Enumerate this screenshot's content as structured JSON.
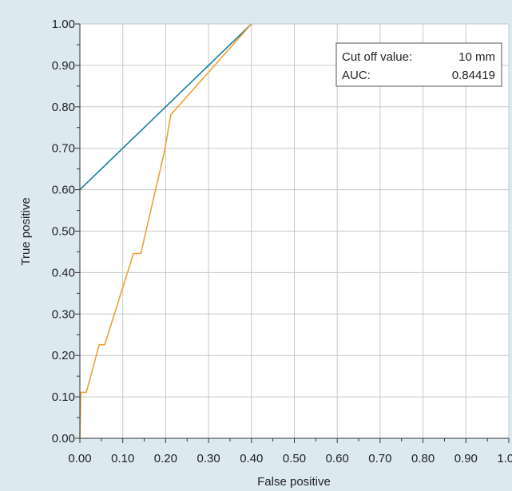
{
  "chart_data": {
    "type": "line",
    "xlabel": "False positive",
    "ylabel": "True positive",
    "xlim": [
      0,
      1
    ],
    "ylim": [
      0,
      1
    ],
    "grid": true,
    "x_ticks": [
      "0.00",
      "0.10",
      "0.20",
      "0.30",
      "0.40",
      "0.50",
      "0.60",
      "0.70",
      "0.80",
      "0.90",
      "1.00"
    ],
    "y_ticks": [
      "0.00",
      "0.10",
      "0.20",
      "0.30",
      "0.40",
      "0.50",
      "0.60",
      "0.70",
      "0.80",
      "0.90",
      "1.00"
    ],
    "series": [
      {
        "color": "#1a7fa0",
        "points": [
          [
            0.0,
            0.6
          ],
          [
            0.4,
            1.0
          ]
        ]
      },
      {
        "color": "#f0a030",
        "points": [
          [
            0.0,
            0.0
          ],
          [
            0.002,
            0.111
          ],
          [
            0.015,
            0.111
          ],
          [
            0.045,
            0.226
          ],
          [
            0.058,
            0.226
          ],
          [
            0.125,
            0.446
          ],
          [
            0.142,
            0.446
          ],
          [
            0.198,
            0.696
          ],
          [
            0.212,
            0.781
          ],
          [
            0.4,
            1.0
          ]
        ]
      }
    ],
    "legend": {
      "position": "top-right",
      "rows": [
        {
          "label": "Cut off value:",
          "value": "10 mm"
        },
        {
          "label": "AUC:",
          "value": "0.84419"
        }
      ]
    }
  }
}
